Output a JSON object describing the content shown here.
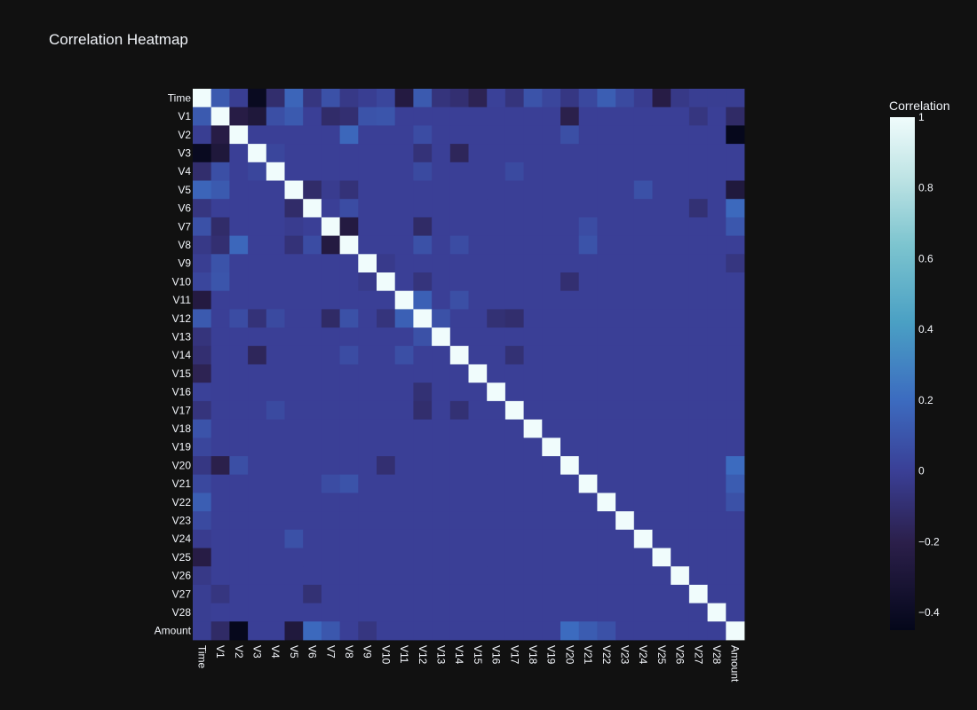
{
  "chart_data": {
    "type": "heatmap",
    "title": "Correlation Heatmap",
    "colorbar_title": "Correlation",
    "variables": [
      "Time",
      "V1",
      "V2",
      "V3",
      "V4",
      "V5",
      "V6",
      "V7",
      "V8",
      "V9",
      "V10",
      "V11",
      "V12",
      "V13",
      "V14",
      "V15",
      "V16",
      "V17",
      "V18",
      "V19",
      "V20",
      "V21",
      "V22",
      "V23",
      "V24",
      "V25",
      "V26",
      "V27",
      "V28",
      "Amount"
    ],
    "zmin": -0.45,
    "zmax": 1,
    "colorbar_ticks": [
      1,
      0.8,
      0.6,
      0.4,
      0.2,
      0,
      -0.2,
      -0.4
    ],
    "colorbar_tick_labels": [
      "1",
      "0.8",
      "0.6",
      "0.4",
      "0.2",
      "0",
      "−0.2",
      "−0.4"
    ],
    "colorscale": [
      [
        0,
        "#04071a"
      ],
      [
        0.17,
        "#2b1f4a"
      ],
      [
        0.31,
        "#3a3f96"
      ],
      [
        0.45,
        "#3c6cc0"
      ],
      [
        0.6,
        "#4aa0c4"
      ],
      [
        0.75,
        "#7cc4cf"
      ],
      [
        0.88,
        "#bde3e4"
      ],
      [
        1,
        "#f0fcfc"
      ]
    ],
    "correlations": [
      [
        "Time",
        "V1",
        0.12
      ],
      [
        "Time",
        "V2",
        -0.01
      ],
      [
        "Time",
        "V3",
        -0.42
      ],
      [
        "Time",
        "V4",
        -0.11
      ],
      [
        "Time",
        "V5",
        0.17
      ],
      [
        "Time",
        "V6",
        -0.06
      ],
      [
        "Time",
        "V7",
        0.08
      ],
      [
        "Time",
        "V8",
        -0.04
      ],
      [
        "Time",
        "V9",
        -0.01
      ],
      [
        "Time",
        "V10",
        0.03
      ],
      [
        "Time",
        "V11",
        -0.25
      ],
      [
        "Time",
        "V12",
        0.12
      ],
      [
        "Time",
        "V13",
        -0.07
      ],
      [
        "Time",
        "V14",
        -0.1
      ],
      [
        "Time",
        "V15",
        -0.18
      ],
      [
        "Time",
        "V16",
        0.01
      ],
      [
        "Time",
        "V17",
        -0.07
      ],
      [
        "Time",
        "V18",
        0.09
      ],
      [
        "Time",
        "V19",
        0.03
      ],
      [
        "Time",
        "V20",
        -0.05
      ],
      [
        "Time",
        "V21",
        0.04
      ],
      [
        "Time",
        "V22",
        0.14
      ],
      [
        "Time",
        "V23",
        0.05
      ],
      [
        "Time",
        "V24",
        -0.02
      ],
      [
        "Time",
        "V25",
        -0.23
      ],
      [
        "Time",
        "V26",
        -0.04
      ],
      [
        "Time",
        "V27",
        -0.01
      ],
      [
        "Time",
        "V28",
        -0.01
      ],
      [
        "Time",
        "Amount",
        -0.01
      ],
      [
        "V1",
        "V2",
        -0.23
      ],
      [
        "V1",
        "V3",
        -0.28
      ],
      [
        "V1",
        "V4",
        0.07
      ],
      [
        "V1",
        "V5",
        0.12
      ],
      [
        "V1",
        "V10",
        0.1
      ],
      [
        "V1",
        "V7",
        -0.12
      ],
      [
        "V1",
        "V8",
        -0.1
      ],
      [
        "V1",
        "V9",
        0.09
      ],
      [
        "V1",
        "V20",
        -0.2
      ],
      [
        "V1",
        "V27",
        -0.06
      ],
      [
        "V1",
        "Amount",
        -0.13
      ],
      [
        "V2",
        "V8",
        0.18
      ],
      [
        "V2",
        "V20",
        0.07
      ],
      [
        "V2",
        "V12",
        0.06
      ],
      [
        "V2",
        "Amount",
        -0.44
      ],
      [
        "V3",
        "V12",
        -0.08
      ],
      [
        "V3",
        "V14",
        -0.16
      ],
      [
        "V3",
        "V4",
        0.03
      ],
      [
        "V4",
        "V12",
        0.05
      ],
      [
        "V4",
        "V17",
        0.05
      ],
      [
        "V5",
        "V6",
        -0.12
      ],
      [
        "V5",
        "V7",
        -0.02
      ],
      [
        "V5",
        "V8",
        -0.08
      ],
      [
        "V5",
        "V24",
        0.08
      ],
      [
        "V5",
        "Amount",
        -0.27
      ],
      [
        "V6",
        "V8",
        0.06
      ],
      [
        "V6",
        "V27",
        -0.09
      ],
      [
        "V6",
        "Amount",
        0.19
      ],
      [
        "V7",
        "V8",
        -0.25
      ],
      [
        "V7",
        "V12",
        -0.13
      ],
      [
        "V7",
        "V21",
        0.06
      ],
      [
        "V7",
        "Amount",
        0.11
      ],
      [
        "V8",
        "V12",
        0.08
      ],
      [
        "V8",
        "V14",
        0.06
      ],
      [
        "V8",
        "V21",
        0.09
      ],
      [
        "V9",
        "V10",
        -0.03
      ],
      [
        "V9",
        "Amount",
        -0.06
      ],
      [
        "V10",
        "V12",
        -0.07
      ],
      [
        "V10",
        "V20",
        -0.1
      ],
      [
        "V11",
        "V12",
        0.15
      ],
      [
        "V11",
        "V14",
        0.07
      ],
      [
        "V12",
        "V13",
        0.08
      ],
      [
        "V12",
        "V16",
        -0.09
      ],
      [
        "V12",
        "V17",
        -0.11
      ],
      [
        "V14",
        "V17",
        -0.09
      ],
      [
        "V20",
        "Amount",
        0.2
      ],
      [
        "V21",
        "Amount",
        0.13
      ],
      [
        "V22",
        "Amount",
        0.08
      ]
    ]
  }
}
